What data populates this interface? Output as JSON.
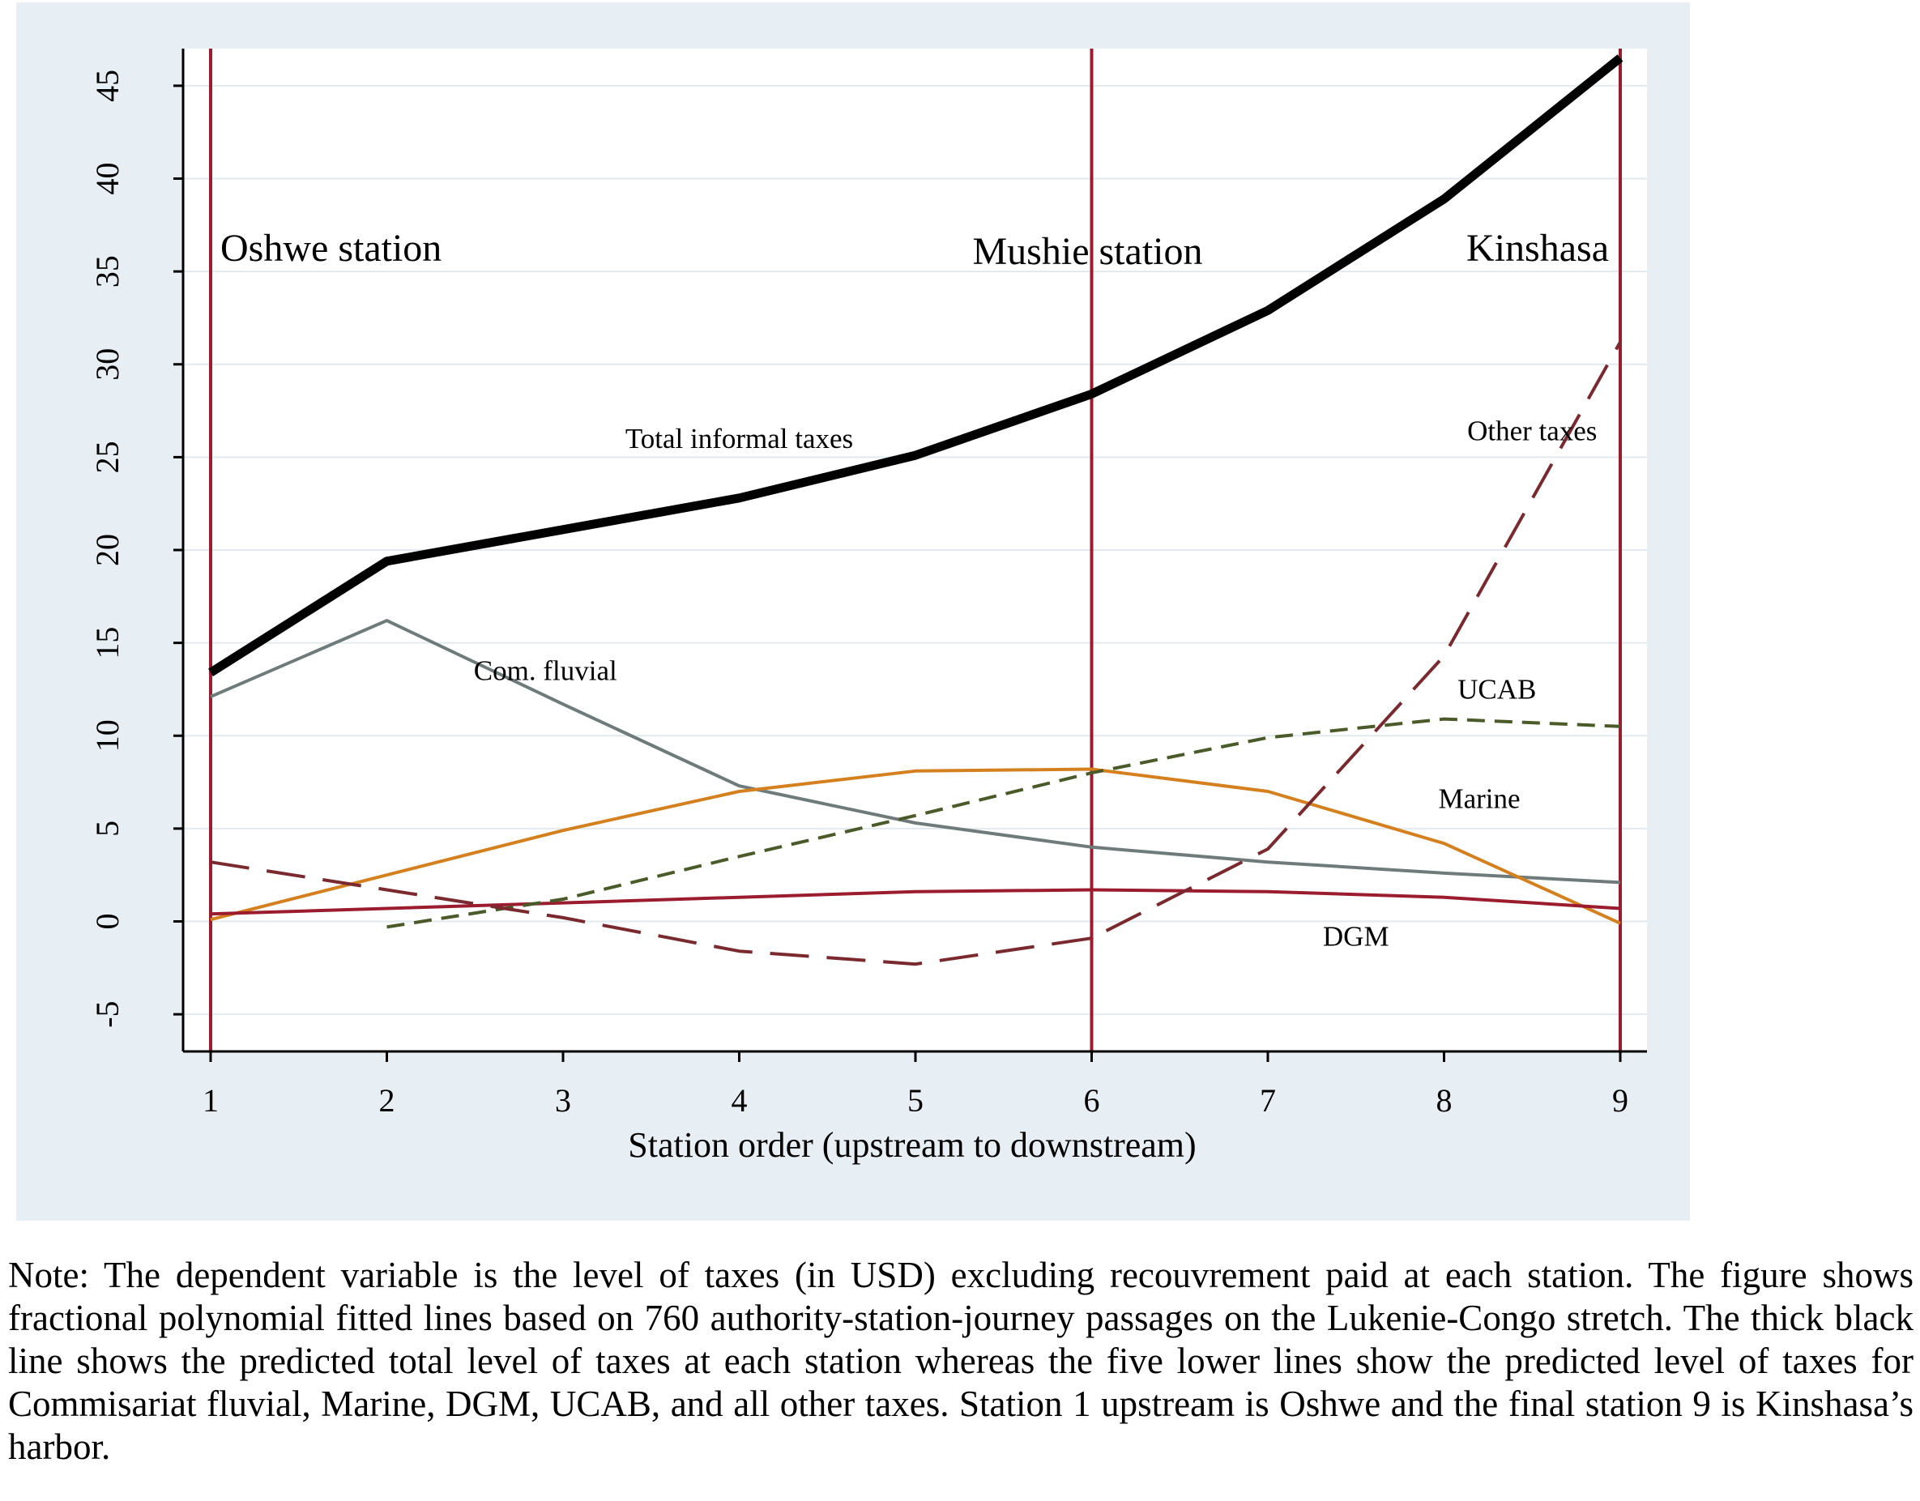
{
  "chart_data": {
    "type": "line",
    "title": "",
    "xlabel": "Station order (upstream to downstream)",
    "ylabel": "",
    "xlim": [
      1,
      9
    ],
    "ylim": [
      -7,
      47
    ],
    "x": [
      1,
      2,
      3,
      4,
      5,
      6,
      7,
      8,
      9
    ],
    "x_ticks": [
      "1",
      "2",
      "3",
      "4",
      "5",
      "6",
      "7",
      "8",
      "9"
    ],
    "y_ticks": [
      "-5",
      "0",
      "5",
      "10",
      "15",
      "20",
      "25",
      "30",
      "35",
      "40",
      "45"
    ],
    "y_tick_values": [
      -5,
      0,
      5,
      10,
      15,
      20,
      25,
      30,
      35,
      40,
      45
    ],
    "grid": true,
    "vertical_markers": [
      {
        "x": 1,
        "label": "Oshwe station"
      },
      {
        "x": 6,
        "label": "Mushie station"
      },
      {
        "x": 9,
        "label": "Kinshasa"
      }
    ],
    "series": [
      {
        "name": "Total informal taxes",
        "color": "#000000",
        "style": "solid",
        "width": 11,
        "x": [
          1,
          2,
          3,
          4,
          5,
          6,
          7,
          8,
          9
        ],
        "values": [
          13.4,
          19.4,
          21.1,
          22.8,
          25.1,
          28.4,
          32.9,
          38.9,
          46.5
        ]
      },
      {
        "name": "Com. fluvial",
        "color": "#6f7b7b",
        "style": "solid",
        "width": 4,
        "x": [
          1,
          2,
          3,
          4,
          5,
          6,
          7,
          8,
          9
        ],
        "values": [
          12.1,
          16.2,
          11.7,
          7.3,
          5.3,
          4.0,
          3.2,
          2.6,
          2.1
        ]
      },
      {
        "name": "Marine",
        "color": "#d4801f",
        "style": "solid",
        "width": 4,
        "x": [
          1,
          2,
          3,
          4,
          5,
          6,
          7,
          8,
          9
        ],
        "values": [
          0.1,
          2.5,
          4.9,
          7.0,
          8.1,
          8.2,
          7.0,
          4.2,
          -0.1
        ]
      },
      {
        "name": "DGM",
        "color": "#9b1c2e",
        "style": "solid",
        "width": 4,
        "x": [
          1,
          2,
          3,
          4,
          5,
          6,
          7,
          8,
          9
        ],
        "values": [
          0.4,
          0.7,
          1.0,
          1.3,
          1.6,
          1.7,
          1.6,
          1.3,
          0.7
        ]
      },
      {
        "name": "UCAB",
        "color": "#4a5a28",
        "style": "dashed",
        "width": 4,
        "x": [
          2,
          3,
          4,
          5,
          6,
          7,
          8,
          9
        ],
        "values": [
          -0.3,
          1.2,
          3.5,
          5.7,
          8.0,
          9.9,
          10.9,
          10.5
        ]
      },
      {
        "name": "Other taxes",
        "color": "#7a2a2e",
        "style": "longdash",
        "width": 4,
        "x": [
          1,
          2,
          3,
          4,
          5,
          6,
          7,
          8,
          9
        ],
        "values": [
          3.2,
          1.7,
          0.2,
          -1.6,
          -2.3,
          -0.9,
          3.9,
          14.3,
          31.2
        ]
      }
    ],
    "series_labels": [
      {
        "text": "Total informal taxes",
        "x": 4.0,
        "y": 25.5
      },
      {
        "text": "Com. fluvial",
        "x": 2.9,
        "y": 13.0
      },
      {
        "text": "UCAB",
        "x": 8.3,
        "y": 12.0
      },
      {
        "text": "Marine",
        "x": 8.2,
        "y": 6.1
      },
      {
        "text": "DGM",
        "x": 7.5,
        "y": -1.3
      },
      {
        "text": "Other taxes",
        "x": 8.5,
        "y": 25.9
      }
    ],
    "colors": {
      "plot_background": "#ffffff",
      "outer_background": "#e8eff4",
      "grid": "#e3eaee",
      "marker_line": "#9b1c2e"
    }
  },
  "note": "Note: The dependent variable is the level of taxes (in USD) excluding recouvrement paid at each station. The figure shows fractional polynomial fitted lines based on 760 authority-station-journey passages on the Lukenie-Congo stretch. The thick black line shows the predicted total level of taxes at each station whereas the five lower lines show the predicted level of taxes for Commisariat fluvial, Marine, DGM, UCAB, and all other taxes. Station 1 upstream is Oshwe and the final station 9 is Kinshasa’s harbor."
}
